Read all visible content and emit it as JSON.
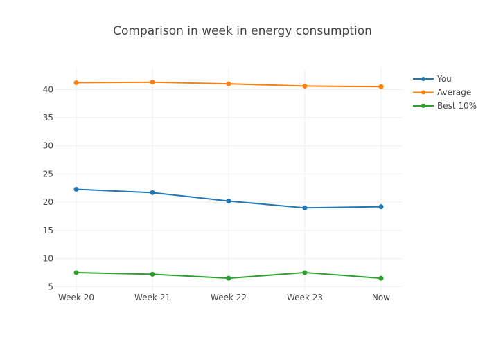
{
  "chart_data": {
    "type": "line",
    "title": "Comparison in week in energy consumption",
    "xlabel": "",
    "ylabel": "",
    "categories": [
      "Week 20",
      "Week 21",
      "Week 22",
      "Week 23",
      "Now"
    ],
    "yticks": [
      5,
      10,
      15,
      20,
      25,
      30,
      35,
      40
    ],
    "ylim": [
      4.3,
      43.6
    ],
    "grid": true,
    "legend_position": "top-right",
    "series": [
      {
        "name": "You",
        "color": "#1f77b4",
        "values": [
          22.3,
          21.7,
          20.2,
          19.0,
          19.2
        ]
      },
      {
        "name": "Average",
        "color": "#ff7f0e",
        "values": [
          41.2,
          41.3,
          41.0,
          40.6,
          40.5
        ]
      },
      {
        "name": "Best 10%",
        "color": "#2ca02c",
        "values": [
          7.5,
          7.2,
          6.5,
          7.5,
          6.5
        ]
      }
    ]
  }
}
